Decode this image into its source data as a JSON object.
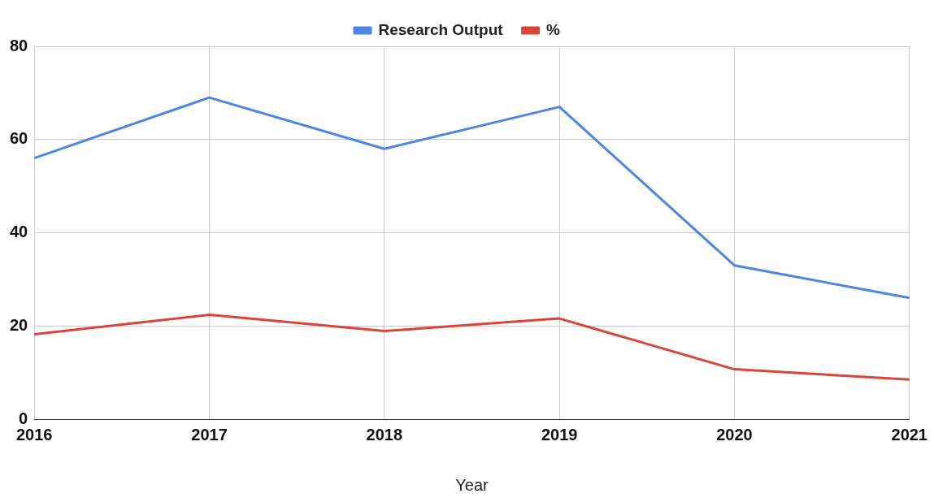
{
  "chart_data": {
    "type": "line",
    "xlabel": "Year",
    "categories": [
      "2016",
      "2017",
      "2018",
      "2019",
      "2020",
      "2021"
    ],
    "series": [
      {
        "name": "Research Output",
        "color": "#4a86e8",
        "values": [
          56,
          69,
          58,
          67,
          33,
          26
        ]
      },
      {
        "name": "%",
        "color": "#db4437",
        "values": [
          18.2,
          22.4,
          18.9,
          21.6,
          10.7,
          8.5
        ]
      }
    ],
    "ylim": [
      0,
      80
    ],
    "yticks": [
      0,
      20,
      40,
      60,
      80
    ],
    "grid": true,
    "legend": "top",
    "marker": "none",
    "line_style": "solid"
  }
}
